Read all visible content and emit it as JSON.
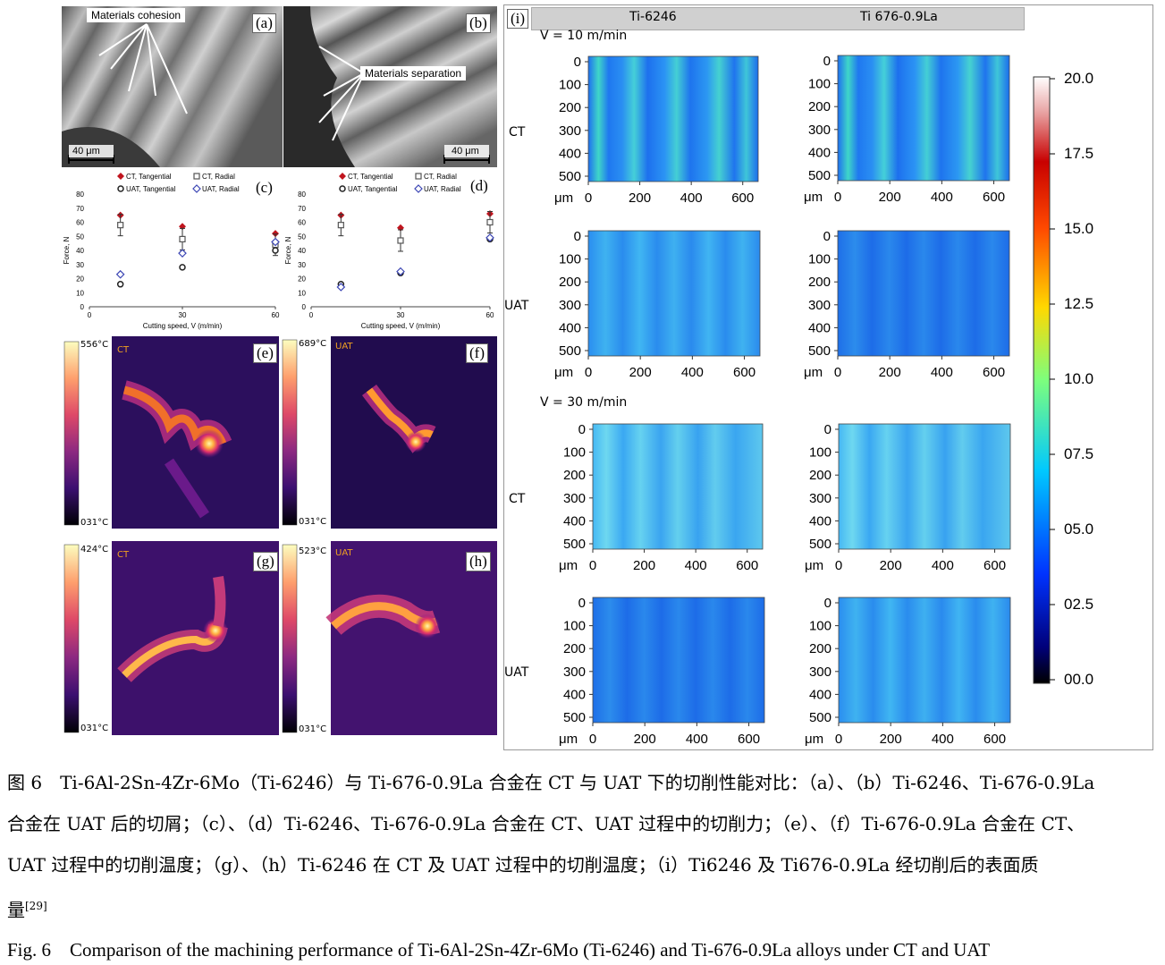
{
  "panels": {
    "a": {
      "label": "(a)",
      "annotation": "Materials cohesion",
      "scale": "40 μm"
    },
    "b": {
      "label": "(b)",
      "annotation": "Materials separation",
      "scale": "40 μm"
    },
    "c": {
      "label": "(c)",
      "xlabel": "Cutting speed, V (m/min)",
      "ylabel": "Force, N"
    },
    "d": {
      "label": "(d)",
      "xlabel": "Cutting speed, V (m/min)",
      "ylabel": "Force, N"
    },
    "e": {
      "label": "(e)",
      "mode": "CT",
      "tmax": "556°C",
      "tmin": "031°C"
    },
    "f": {
      "label": "(f)",
      "mode": "UAT",
      "tmax": "689°C",
      "tmin": "031°C"
    },
    "g": {
      "label": "(g)",
      "mode": "CT",
      "tmax": "424°C",
      "tmin": "031°C"
    },
    "h": {
      "label": "(h)",
      "mode": "UAT",
      "tmax": "523°C",
      "tmin": "031°C"
    },
    "i": {
      "label": "(i)",
      "col1": "Ti-6246",
      "col2": "Ti 676-0.9La",
      "speed1": "V = 10 m/min",
      "speed2": "V = 30 m/min",
      "row_ct": "CT",
      "row_uat": "UAT",
      "unit": "μm",
      "colorbar": [
        "20.0",
        "17.5",
        "15.0",
        "12.5",
        "10.0",
        "07.5",
        "05.0",
        "02.5",
        "00.0"
      ]
    }
  },
  "chart_data": [
    {
      "type": "scatter",
      "panel": "c",
      "xlabel": "Cutting speed, V (m/min)",
      "ylabel": "Force, N",
      "xlim": [
        0,
        60
      ],
      "ylim": [
        0,
        80
      ],
      "xticks": [
        0,
        30,
        60
      ],
      "yticks": [
        0,
        10,
        20,
        30,
        40,
        50,
        60,
        70,
        80
      ],
      "legend": [
        "CT, Tangential",
        "CT, Radial",
        "UAT, Tangential",
        "UAT, Radial"
      ],
      "series": [
        {
          "name": "CT, Tangential",
          "x": [
            10,
            30,
            60
          ],
          "y": [
            65,
            57,
            52
          ],
          "color": "#c0141e"
        },
        {
          "name": "CT, Radial",
          "x": [
            10,
            30,
            60
          ],
          "y": [
            58,
            48,
            44
          ],
          "color": "#555555"
        },
        {
          "name": "UAT, Tangential",
          "x": [
            10,
            30,
            60
          ],
          "y": [
            16,
            28,
            40
          ],
          "color": "#222222"
        },
        {
          "name": "UAT, Radial",
          "x": [
            10,
            30,
            60
          ],
          "y": [
            23,
            38,
            46
          ],
          "color": "#3c46b4"
        }
      ]
    },
    {
      "type": "scatter",
      "panel": "d",
      "xlabel": "Cutting speed, V (m/min)",
      "ylabel": "Force, N",
      "xlim": [
        0,
        60
      ],
      "ylim": [
        0,
        80
      ],
      "xticks": [
        0,
        30,
        60
      ],
      "yticks": [
        0,
        10,
        20,
        30,
        40,
        50,
        60,
        70,
        80
      ],
      "legend": [
        "CT, Tangential",
        "CT, Radial",
        "UAT, Tangential",
        "UAT, Radial"
      ],
      "series": [
        {
          "name": "CT, Tangential",
          "x": [
            10,
            30,
            60
          ],
          "y": [
            65,
            56,
            66
          ],
          "color": "#c0141e"
        },
        {
          "name": "CT, Radial",
          "x": [
            10,
            30,
            60
          ],
          "y": [
            58,
            47,
            60
          ],
          "color": "#555555"
        },
        {
          "name": "UAT, Tangential",
          "x": [
            10,
            30,
            60
          ],
          "y": [
            16,
            24,
            48
          ],
          "color": "#222222"
        },
        {
          "name": "UAT, Radial",
          "x": [
            10,
            30,
            60
          ],
          "y": [
            14,
            25,
            49
          ],
          "color": "#3c46b4"
        }
      ]
    }
  ],
  "caption": {
    "zh1": "图 6　Ti-6Al-2Sn-4Zr-6Mo（Ti-6246）与 Ti-676-0.9La 合金在 CT 与 UAT 下的切削性能对比：（a）、（b）Ti-6246、Ti-676-0.9La",
    "zh2": "合金在 UAT 后的切屑；（c）、（d）Ti-6246、Ti-676-0.9La 合金在 CT、UAT 过程中的切削力；（e）、（f）Ti-676-0.9La 合金在 CT、",
    "zh3": "UAT 过程中的切削温度；（g）、（h）Ti-6246 在 CT 及 UAT 过程中的切削温度；（i）Ti6246 及 Ti676-0.9La 经切削后的表面质",
    "zh4": "量",
    "ref": "[29]",
    "en": "Fig. 6　Comparison of the machining performance of Ti-6Al-2Sn-4Zr-6Mo (Ti-6246) and Ti-676-0.9La alloys under CT and UAT"
  }
}
